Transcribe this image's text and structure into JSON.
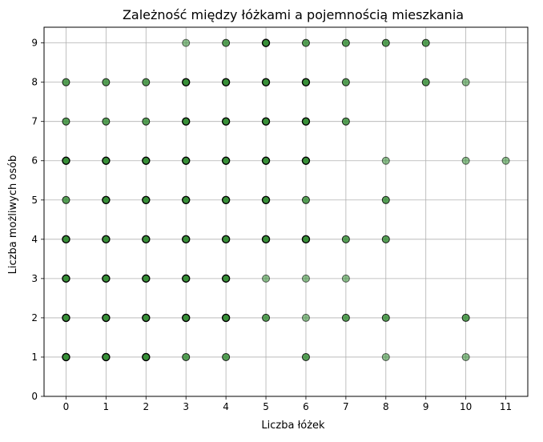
{
  "chart_data": {
    "type": "scatter",
    "title": "Zależność między łóżkami a pojemnością mieszkania",
    "xlabel": "Liczba łóżek",
    "ylabel": "Liczba możliwych osób",
    "xlim": [
      -0.55,
      11.55
    ],
    "ylim": [
      0,
      9.4
    ],
    "x_ticks": [
      "0",
      "1",
      "2",
      "3",
      "4",
      "5",
      "6",
      "7",
      "8",
      "9",
      "10",
      "11"
    ],
    "y_ticks": [
      "0",
      "1",
      "2",
      "3",
      "4",
      "5",
      "6",
      "7",
      "8",
      "9"
    ],
    "grid": true,
    "marker_fill": "#2e8b2e",
    "marker_edge": "#000000",
    "axis_color": "#000000",
    "grid_color": "#b0b0b0",
    "points": [
      {
        "x": 3,
        "y": 9,
        "d": 1
      },
      {
        "x": 4,
        "y": 9,
        "d": 2
      },
      {
        "x": 5,
        "y": 9,
        "d": 3
      },
      {
        "x": 6,
        "y": 9,
        "d": 2
      },
      {
        "x": 7,
        "y": 9,
        "d": 2
      },
      {
        "x": 8,
        "y": 9,
        "d": 2
      },
      {
        "x": 9,
        "y": 9,
        "d": 2
      },
      {
        "x": 0,
        "y": 8,
        "d": 2
      },
      {
        "x": 1,
        "y": 8,
        "d": 2
      },
      {
        "x": 2,
        "y": 8,
        "d": 2
      },
      {
        "x": 3,
        "y": 8,
        "d": 3
      },
      {
        "x": 4,
        "y": 8,
        "d": 3
      },
      {
        "x": 5,
        "y": 8,
        "d": 3
      },
      {
        "x": 6,
        "y": 8,
        "d": 3
      },
      {
        "x": 7,
        "y": 8,
        "d": 2
      },
      {
        "x": 9,
        "y": 8,
        "d": 2
      },
      {
        "x": 10,
        "y": 8,
        "d": 1
      },
      {
        "x": 0,
        "y": 7,
        "d": 2
      },
      {
        "x": 1,
        "y": 7,
        "d": 2
      },
      {
        "x": 2,
        "y": 7,
        "d": 2
      },
      {
        "x": 3,
        "y": 7,
        "d": 3
      },
      {
        "x": 4,
        "y": 7,
        "d": 3
      },
      {
        "x": 5,
        "y": 7,
        "d": 3
      },
      {
        "x": 6,
        "y": 7,
        "d": 3
      },
      {
        "x": 7,
        "y": 7,
        "d": 2
      },
      {
        "x": 0,
        "y": 6,
        "d": 3
      },
      {
        "x": 1,
        "y": 6,
        "d": 3
      },
      {
        "x": 2,
        "y": 6,
        "d": 3
      },
      {
        "x": 3,
        "y": 6,
        "d": 3
      },
      {
        "x": 4,
        "y": 6,
        "d": 3
      },
      {
        "x": 5,
        "y": 6,
        "d": 3
      },
      {
        "x": 6,
        "y": 6,
        "d": 3
      },
      {
        "x": 8,
        "y": 6,
        "d": 1
      },
      {
        "x": 10,
        "y": 6,
        "d": 1
      },
      {
        "x": 11,
        "y": 6,
        "d": 1
      },
      {
        "x": 0,
        "y": 5,
        "d": 2
      },
      {
        "x": 1,
        "y": 5,
        "d": 3
      },
      {
        "x": 2,
        "y": 5,
        "d": 3
      },
      {
        "x": 3,
        "y": 5,
        "d": 3
      },
      {
        "x": 4,
        "y": 5,
        "d": 3
      },
      {
        "x": 5,
        "y": 5,
        "d": 3
      },
      {
        "x": 6,
        "y": 5,
        "d": 2
      },
      {
        "x": 8,
        "y": 5,
        "d": 2
      },
      {
        "x": 0,
        "y": 4,
        "d": 3
      },
      {
        "x": 1,
        "y": 4,
        "d": 3
      },
      {
        "x": 2,
        "y": 4,
        "d": 3
      },
      {
        "x": 3,
        "y": 4,
        "d": 3
      },
      {
        "x": 4,
        "y": 4,
        "d": 3
      },
      {
        "x": 5,
        "y": 4,
        "d": 3
      },
      {
        "x": 6,
        "y": 4,
        "d": 3
      },
      {
        "x": 7,
        "y": 4,
        "d": 2
      },
      {
        "x": 8,
        "y": 4,
        "d": 2
      },
      {
        "x": 0,
        "y": 3,
        "d": 3
      },
      {
        "x": 1,
        "y": 3,
        "d": 3
      },
      {
        "x": 2,
        "y": 3,
        "d": 3
      },
      {
        "x": 3,
        "y": 3,
        "d": 3
      },
      {
        "x": 4,
        "y": 3,
        "d": 3
      },
      {
        "x": 5,
        "y": 3,
        "d": 1
      },
      {
        "x": 6,
        "y": 3,
        "d": 1
      },
      {
        "x": 7,
        "y": 3,
        "d": 1
      },
      {
        "x": 0,
        "y": 2,
        "d": 3
      },
      {
        "x": 1,
        "y": 2,
        "d": 3
      },
      {
        "x": 2,
        "y": 2,
        "d": 3
      },
      {
        "x": 3,
        "y": 2,
        "d": 3
      },
      {
        "x": 4,
        "y": 2,
        "d": 3
      },
      {
        "x": 5,
        "y": 2,
        "d": 2
      },
      {
        "x": 6,
        "y": 2,
        "d": 1
      },
      {
        "x": 7,
        "y": 2,
        "d": 2
      },
      {
        "x": 8,
        "y": 2,
        "d": 2
      },
      {
        "x": 10,
        "y": 2,
        "d": 2
      },
      {
        "x": 0,
        "y": 1,
        "d": 3
      },
      {
        "x": 1,
        "y": 1,
        "d": 3
      },
      {
        "x": 2,
        "y": 1,
        "d": 3
      },
      {
        "x": 3,
        "y": 1,
        "d": 2
      },
      {
        "x": 4,
        "y": 1,
        "d": 2
      },
      {
        "x": 6,
        "y": 1,
        "d": 2
      },
      {
        "x": 8,
        "y": 1,
        "d": 1
      },
      {
        "x": 10,
        "y": 1,
        "d": 1
      }
    ]
  }
}
